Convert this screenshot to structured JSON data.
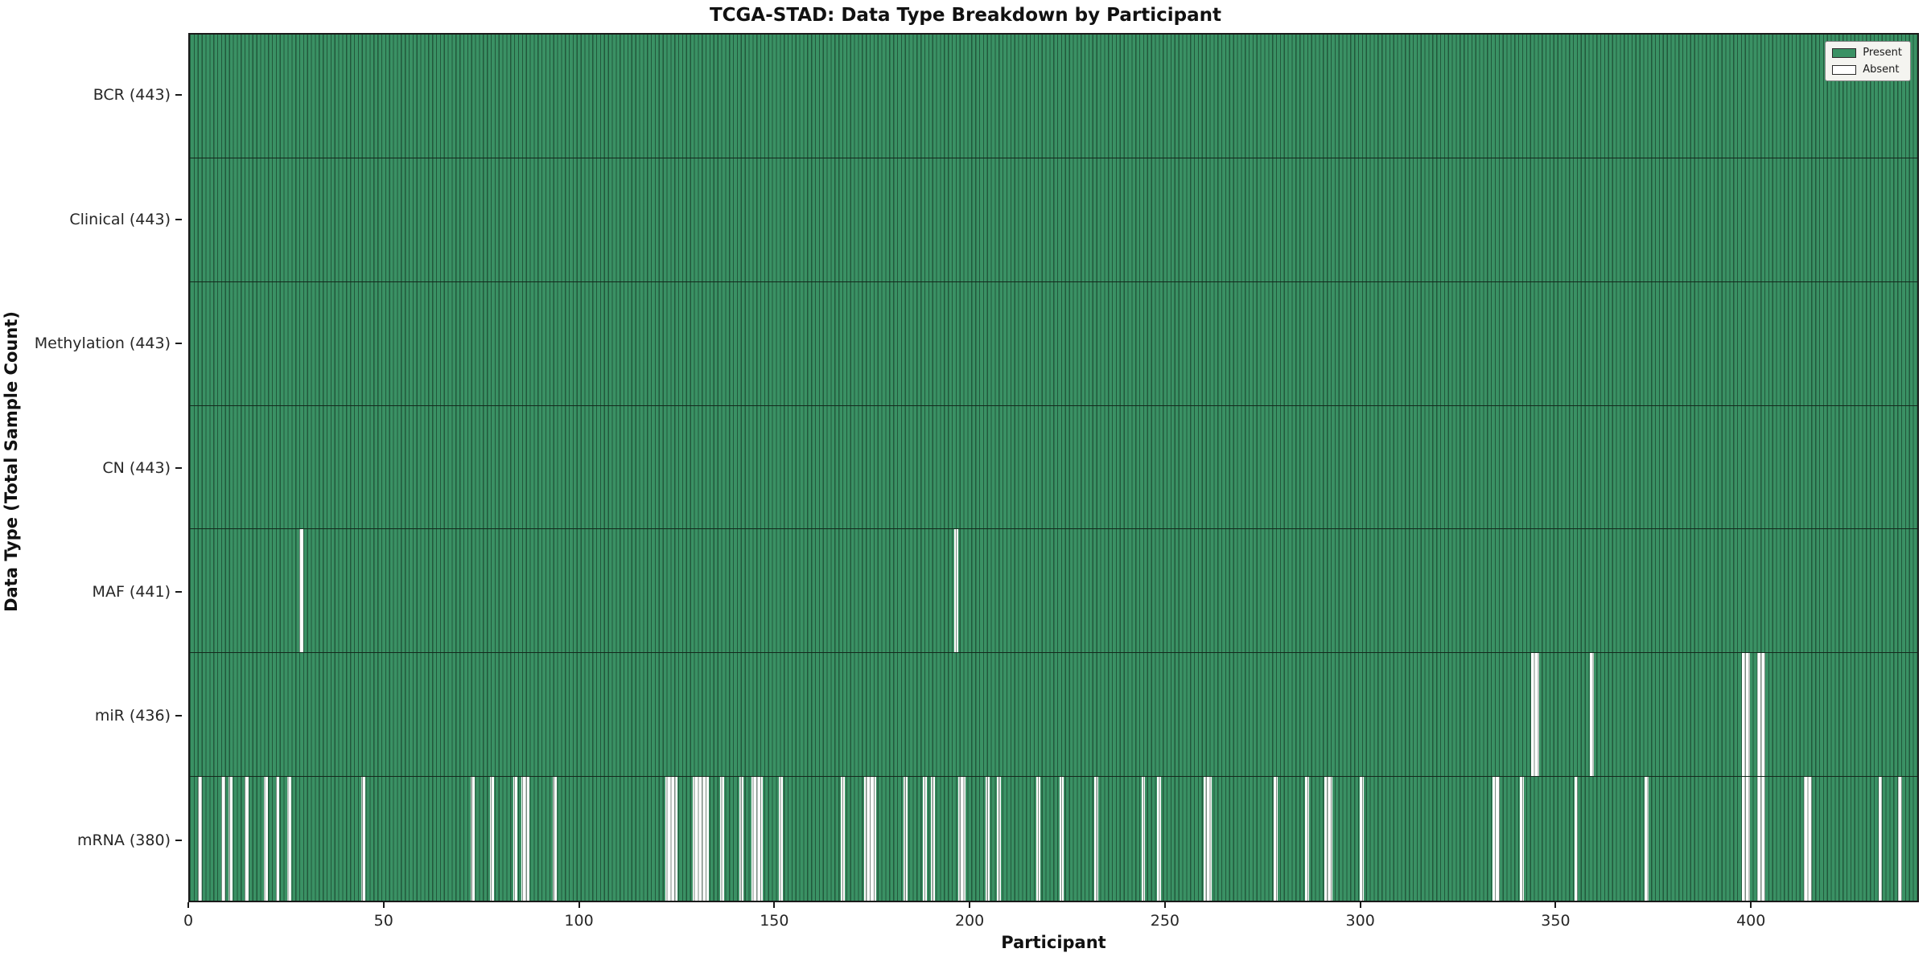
{
  "title": "TCGA-STAD: Data Type Breakdown by Participant",
  "x_axis": {
    "label": "Participant"
  },
  "y_axis": {
    "label": "Data Type (Total Sample Count)"
  },
  "legend": {
    "present_label": "Present",
    "absent_label": "Absent"
  },
  "colors": {
    "present": "#3a9164",
    "absent": "#ffffff",
    "edge": "#14291d"
  },
  "chart_data": {
    "type": "heatmap",
    "title": "TCGA-STAD: Data Type Breakdown by Participant",
    "xlabel": "Participant",
    "ylabel": "Data Type (Total Sample Count)",
    "legend_entries": [
      "Present",
      "Absent"
    ],
    "legend_position": "upper right",
    "n_participants": 443,
    "x_ticks": [
      0,
      50,
      100,
      150,
      200,
      250,
      300,
      350,
      400
    ],
    "rows": [
      {
        "label": "BCR",
        "count": 443,
        "absent": []
      },
      {
        "label": "Clinical",
        "count": 443,
        "absent": []
      },
      {
        "label": "Methylation",
        "count": 443,
        "absent": []
      },
      {
        "label": "CN",
        "count": 443,
        "absent": []
      },
      {
        "label": "MAF",
        "count": 441,
        "absent": [
          28,
          196
        ]
      },
      {
        "label": "miR",
        "count": 436,
        "absent": [
          344,
          345,
          359,
          398,
          399,
          402,
          403
        ]
      },
      {
        "label": "mRNA",
        "count": 380,
        "absent": [
          2,
          8,
          10,
          14,
          19,
          22,
          25,
          44,
          72,
          77,
          83,
          85,
          86,
          93,
          122,
          123,
          124,
          129,
          130,
          131,
          132,
          136,
          141,
          144,
          145,
          146,
          151,
          167,
          173,
          174,
          175,
          183,
          188,
          190,
          197,
          198,
          204,
          207,
          217,
          223,
          232,
          244,
          248,
          260,
          261,
          278,
          286,
          291,
          292,
          300,
          334,
          335,
          341,
          355,
          373,
          398,
          399,
          402,
          403,
          414,
          415,
          433,
          438
        ]
      }
    ]
  }
}
